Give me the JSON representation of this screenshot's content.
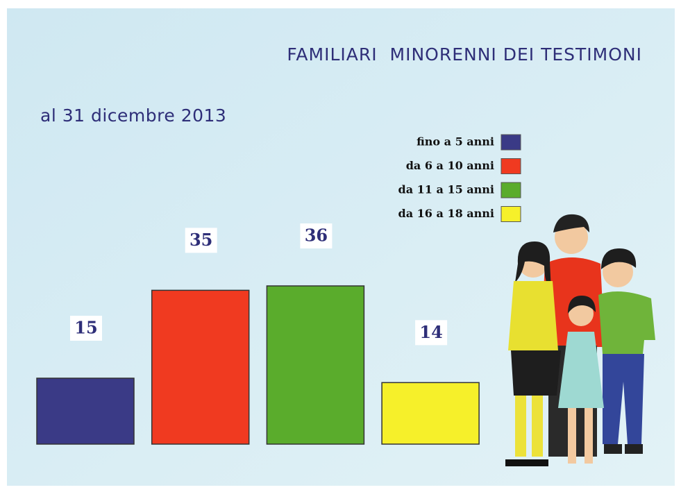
{
  "chart_data": {
    "type": "bar",
    "title": "FAMILIARI  MINORENNI DEI TESTIMONI",
    "subtitle": "al 31 dicembre 2013",
    "series": [
      {
        "name": "fino a 5 anni",
        "color": "#3a3a86",
        "values": [
          15
        ]
      },
      {
        "name": "da 6 a 10 anni",
        "color": "#f03a20",
        "values": [
          35
        ]
      },
      {
        "name": "da 11 a 15 anni",
        "color": "#5aac2c",
        "values": [
          36
        ]
      },
      {
        "name": "da 16 a 18 anni",
        "color": "#f6f02a",
        "values": [
          14
        ]
      }
    ]
  }
}
